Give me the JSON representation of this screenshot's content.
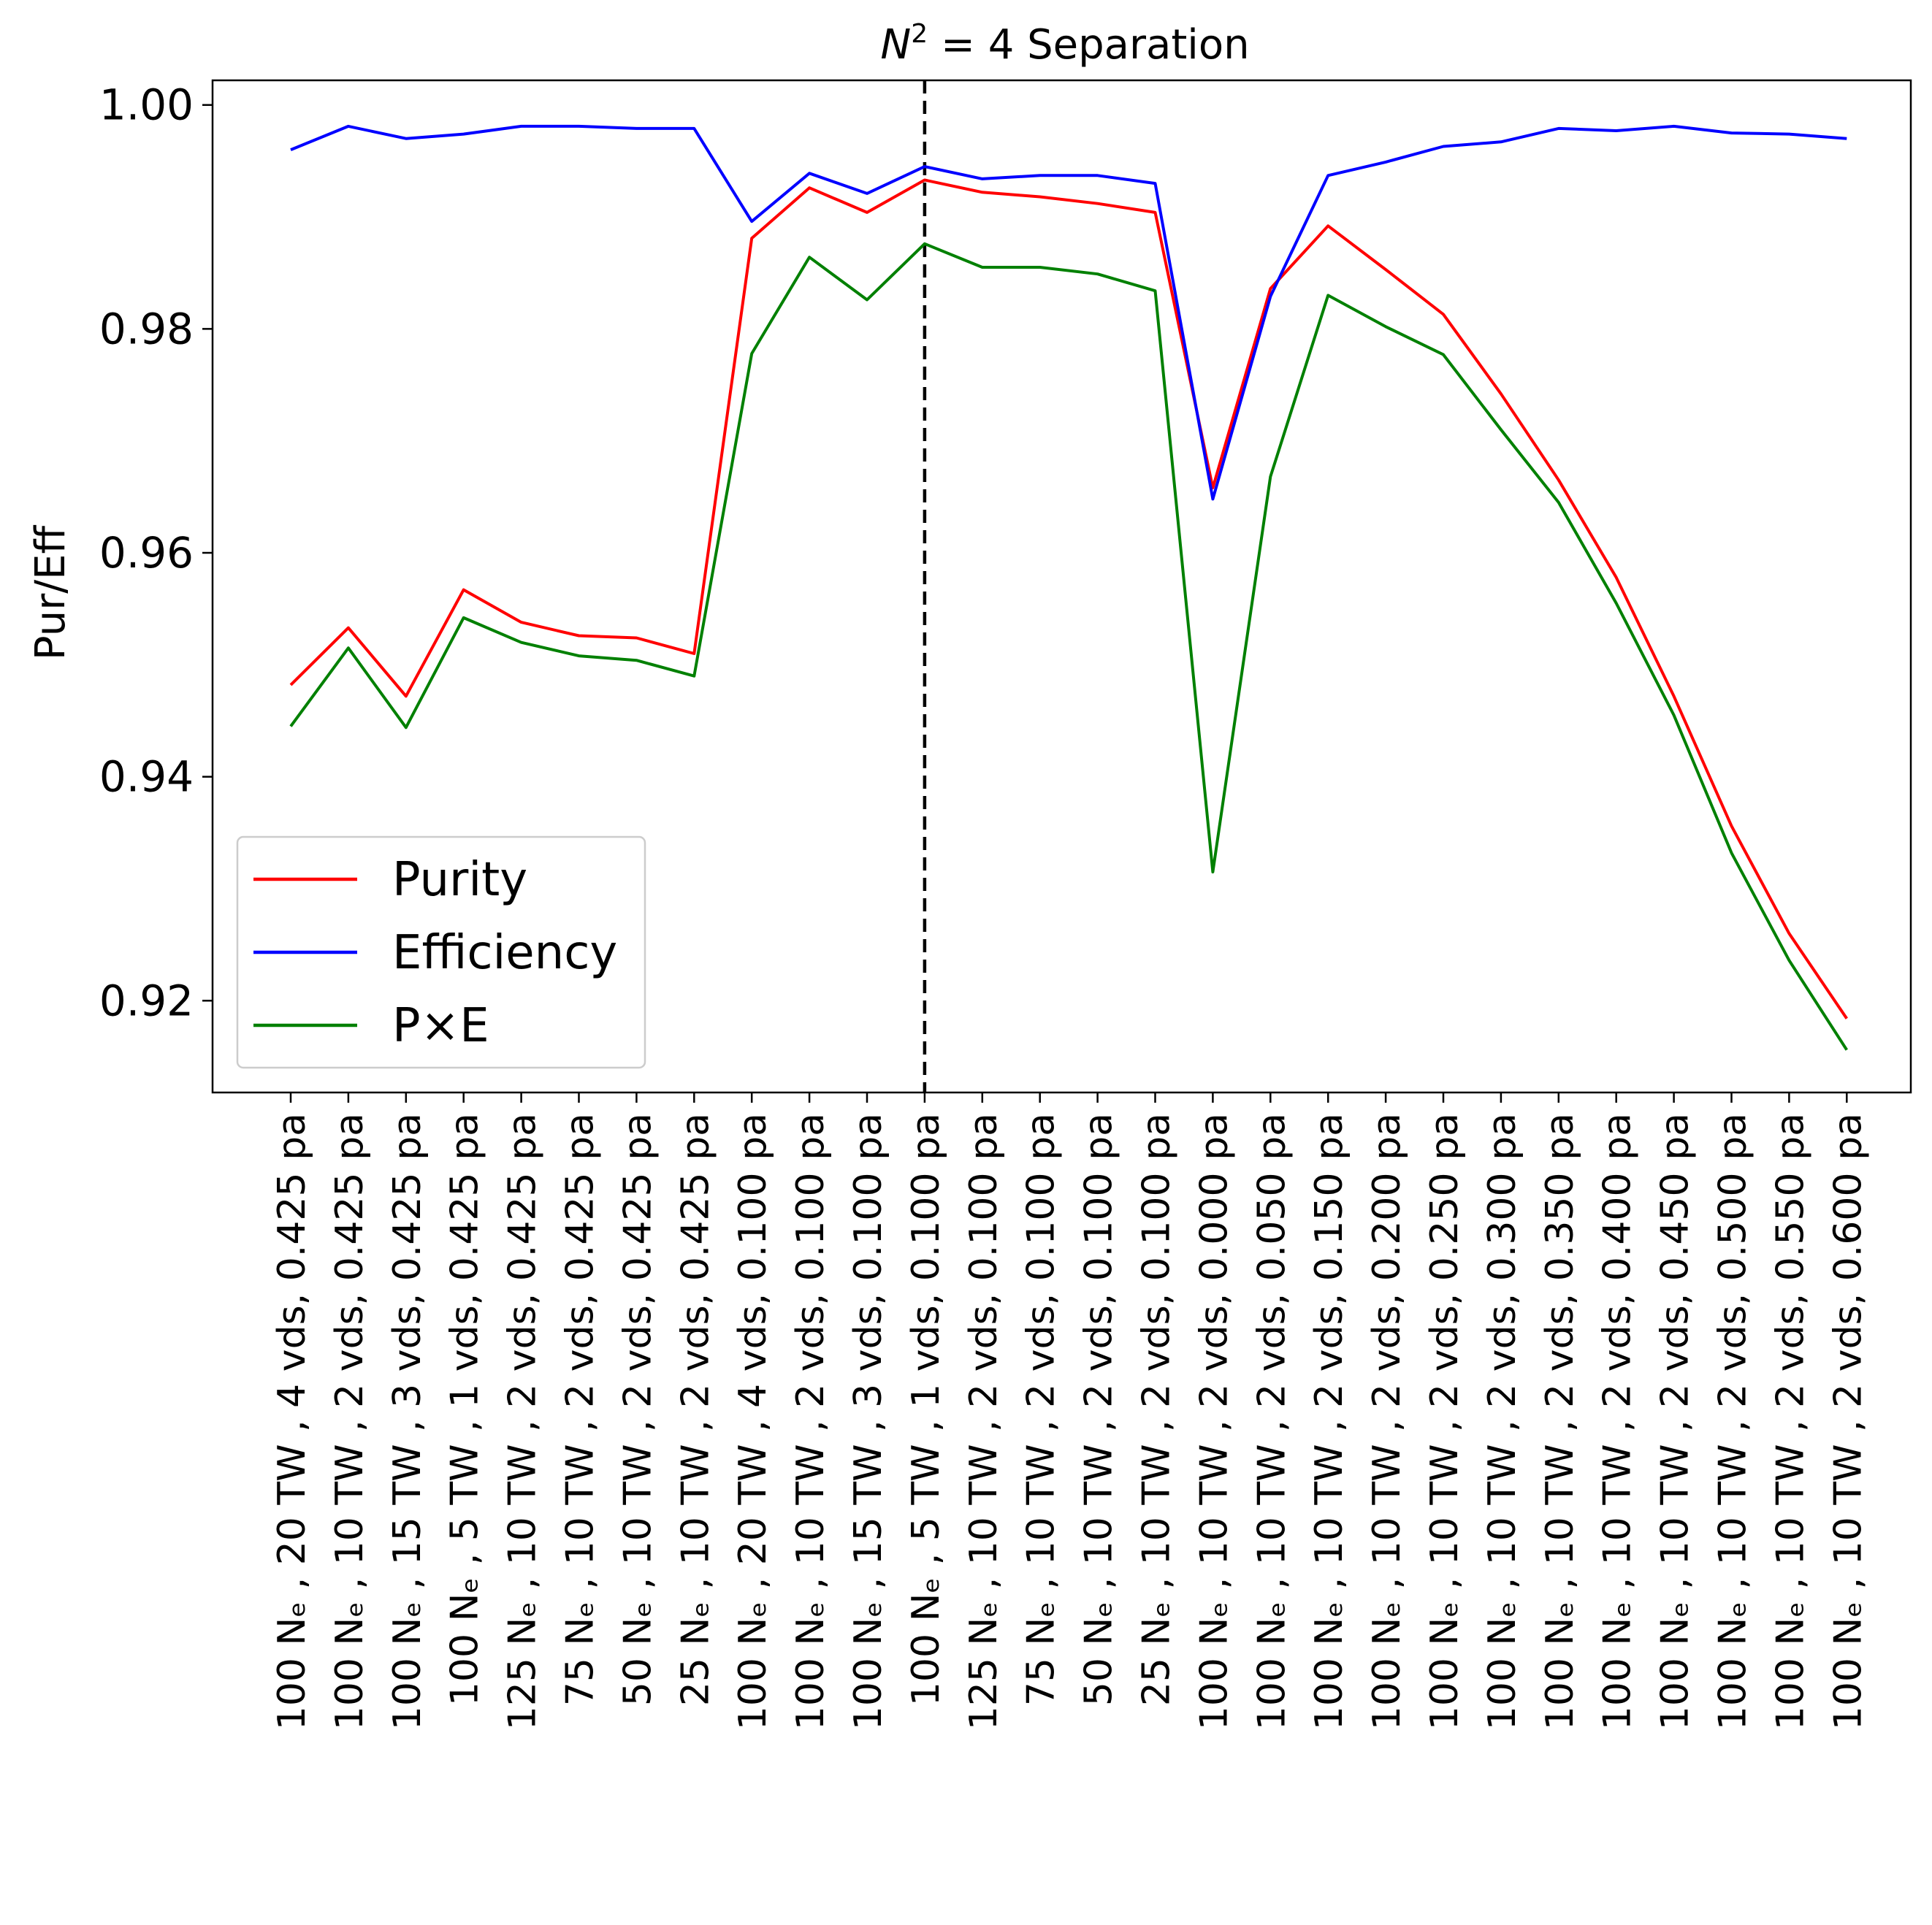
{
  "chart_data": {
    "type": "line",
    "title": "N² = 4 Separation",
    "title_parts": {
      "symbol": "N",
      "exponent": "2",
      "rest": " = 4 Separation"
    },
    "xlabel": "",
    "ylabel": "Pur/Eff",
    "ylim": [
      0.9118,
      1.0022
    ],
    "yticks": [
      0.92,
      0.94,
      0.96,
      0.98,
      1.0
    ],
    "ytick_labels": [
      "0.92",
      "0.94",
      "0.96",
      "0.98",
      "1.00"
    ],
    "grid": false,
    "legend_position": "lower-left",
    "reference_line": {
      "category_index": 11,
      "style": "dashed",
      "color": "#000000"
    },
    "categories": [
      "100 Nₑ , 20 TW , 4 vds, 0.425 pa",
      "100 Nₑ , 10 TW , 2 vds, 0.425 pa",
      "100 Nₑ , 15 TW , 3 vds, 0.425 pa",
      "100 Nₑ , 5 TW , 1 vds, 0.425 pa",
      "125 Nₑ , 10 TW , 2 vds, 0.425 pa",
      "75 Nₑ , 10 TW , 2 vds, 0.425 pa",
      "50 Nₑ , 10 TW , 2 vds, 0.425 pa",
      "25 Nₑ , 10 TW , 2 vds, 0.425 pa",
      "100 Nₑ , 20 TW , 4 vds, 0.100 pa",
      "100 Nₑ , 10 TW , 2 vds, 0.100 pa",
      "100 Nₑ , 15 TW , 3 vds, 0.100 pa",
      "100 Nₑ , 5 TW , 1 vds, 0.100 pa",
      "125 Nₑ , 10 TW , 2 vds, 0.100 pa",
      "75 Nₑ , 10 TW , 2 vds, 0.100 pa",
      "50 Nₑ , 10 TW , 2 vds, 0.100 pa",
      "25 Nₑ , 10 TW , 2 vds, 0.100 pa",
      "100 Nₑ , 10 TW , 2 vds, 0.000 pa",
      "100 Nₑ , 10 TW , 2 vds, 0.050 pa",
      "100 Nₑ , 10 TW , 2 vds, 0.150 pa",
      "100 Nₑ , 10 TW , 2 vds, 0.200 pa",
      "100 Nₑ , 10 TW , 2 vds, 0.250 pa",
      "100 Nₑ , 10 TW , 2 vds, 0.300 pa",
      "100 Nₑ , 10 TW , 2 vds, 0.350 pa",
      "100 Nₑ , 10 TW , 2 vds, 0.400 pa",
      "100 Nₑ , 10 TW , 2 vds, 0.450 pa",
      "100 Nₑ , 10 TW , 2 vds, 0.500 pa",
      "100 Nₑ , 10 TW , 2 vds, 0.550 pa",
      "100 Nₑ , 10 TW , 2 vds, 0.600 pa"
    ],
    "series": [
      {
        "name": "Purity",
        "color": "#ff0000",
        "values": [
          0.9482,
          0.9533,
          0.9472,
          0.9567,
          0.9538,
          0.9526,
          0.9524,
          0.951,
          0.9881,
          0.9926,
          0.9904,
          0.9933,
          0.9922,
          0.9918,
          0.9912,
          0.9904,
          0.9658,
          0.9836,
          0.9892,
          0.9853,
          0.9813,
          0.9742,
          0.9665,
          0.9578,
          0.9472,
          0.9356,
          0.926,
          0.9184
        ]
      },
      {
        "name": "Efficiency",
        "color": "#0000ff",
        "values": [
          0.996,
          0.9981,
          0.997,
          0.9974,
          0.9981,
          0.9981,
          0.9979,
          0.9979,
          0.9896,
          0.9939,
          0.9921,
          0.9945,
          0.9934,
          0.9937,
          0.9937,
          0.993,
          0.9648,
          0.9829,
          0.9937,
          0.9949,
          0.9963,
          0.9967,
          0.9979,
          0.9977,
          0.9981,
          0.9975,
          0.9974,
          0.997
        ]
      },
      {
        "name": "P×E",
        "color": "#008000",
        "values": [
          0.9445,
          0.9515,
          0.9444,
          0.9542,
          0.952,
          0.9508,
          0.9504,
          0.949,
          0.9778,
          0.9864,
          0.9826,
          0.9876,
          0.9855,
          0.9855,
          0.9849,
          0.9834,
          0.9315,
          0.9668,
          0.983,
          0.9802,
          0.9777,
          0.971,
          0.9645,
          0.9555,
          0.9455,
          0.9332,
          0.9236,
          0.9156
        ]
      }
    ]
  }
}
